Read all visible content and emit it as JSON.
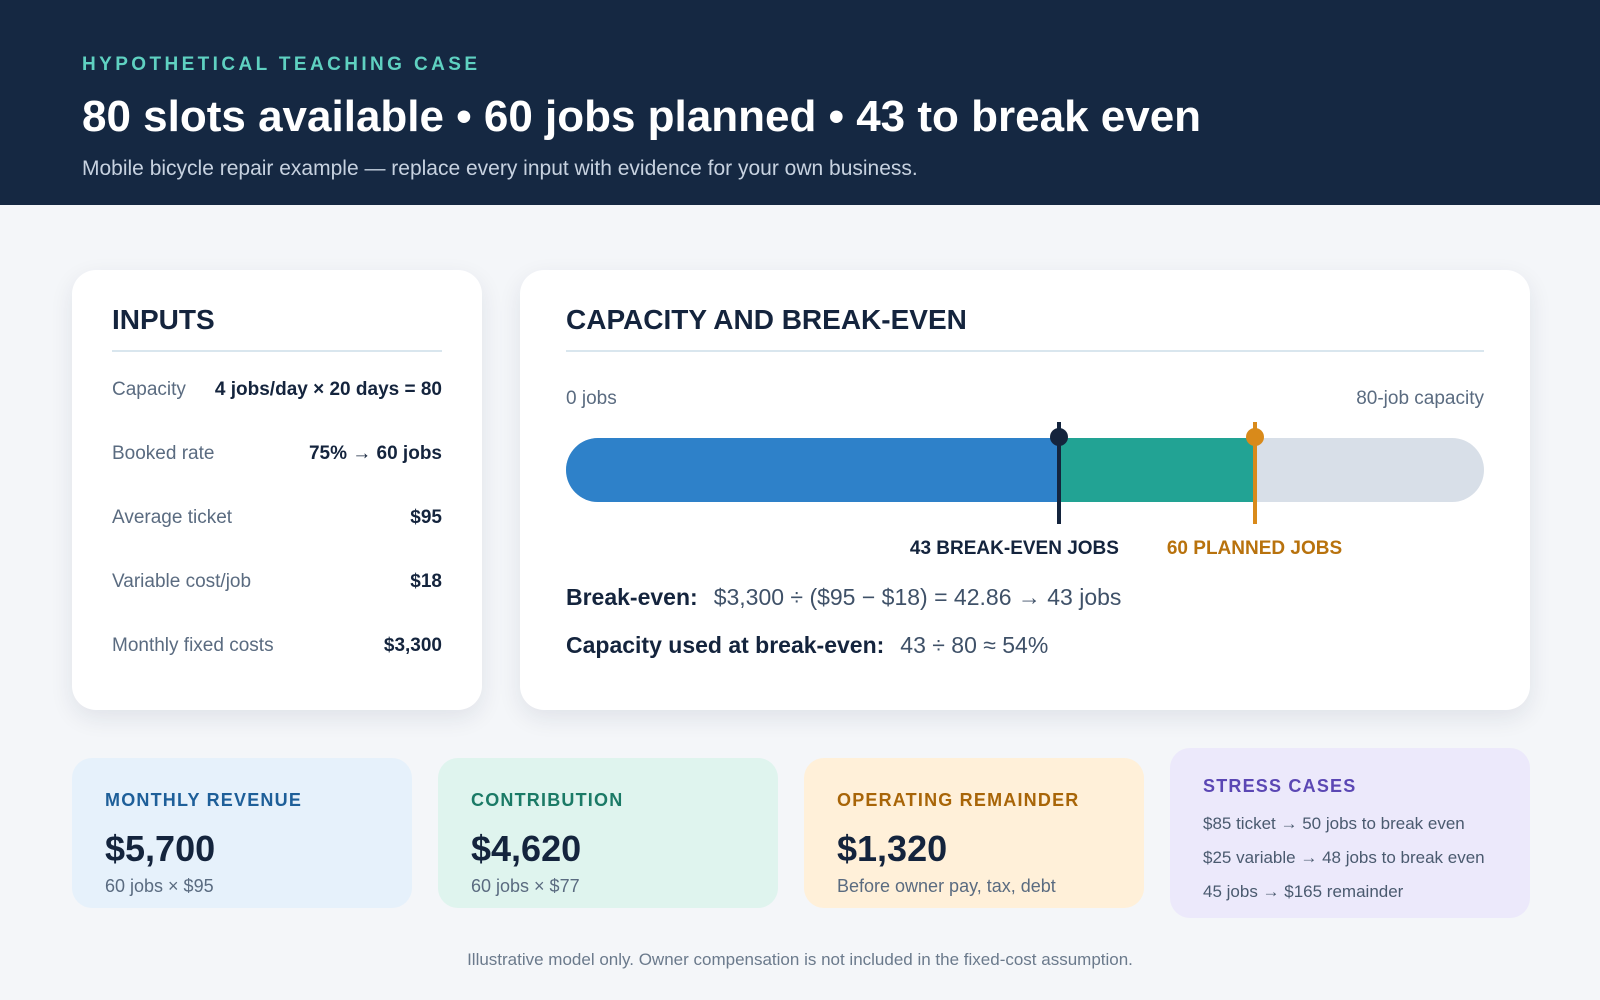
{
  "header": {
    "eyebrow": "HYPOTHETICAL TEACHING CASE",
    "headline": "80 slots available • 60 jobs planned • 43 to break even",
    "subline": "Mobile bicycle repair example — replace every input with evidence for your own business."
  },
  "inputs": {
    "title": "INPUTS",
    "rows": [
      {
        "label": "Capacity",
        "value": "4 jobs/day × 20 days = 80"
      },
      {
        "label": "Booked rate",
        "value": "75% → 60 jobs"
      },
      {
        "label": "Average ticket",
        "value": "$95"
      },
      {
        "label": "Variable cost/job",
        "value": "$18"
      },
      {
        "label": "Monthly fixed costs",
        "value": "$3,300"
      }
    ]
  },
  "capacity": {
    "title": "CAPACITY AND BREAK-EVEN",
    "axis_left": "0 jobs",
    "axis_right": "80-job capacity",
    "total_capacity": 80,
    "break_even_jobs": 43,
    "planned_jobs": 60,
    "break_even_label": "43 BREAK-EVEN JOBS",
    "planned_label": "60 PLANNED JOBS",
    "formula_1_key": "Break-even:",
    "formula_1_value": "$3,300 ÷ ($95 − $18) = 42.86 → 43 jobs",
    "formula_2_key": "Capacity used at break-even:",
    "formula_2_value": "43 ÷ 80 ≈ 54%",
    "colors": {
      "break_even_segment": "#2e81c9",
      "planned_segment": "#22a394",
      "remaining_track": "#d8dfe8",
      "planned_marker": "#d98a1a",
      "break_even_marker": "#14243d"
    }
  },
  "tiles": {
    "revenue": {
      "label": "MONTHLY REVENUE",
      "value": "$5,700",
      "note": "60 jobs × $95"
    },
    "contribution": {
      "label": "CONTRIBUTION",
      "value": "$4,620",
      "note": "60 jobs × $77"
    },
    "operating": {
      "label": "OPERATING REMAINDER",
      "value": "$1,320",
      "note": "Before owner pay, tax, debt"
    },
    "stress": {
      "label": "STRESS CASES",
      "items": [
        "$85 ticket → 50 jobs to break even",
        "$25 variable → 48 jobs to break even",
        "45 jobs → $165 remainder"
      ]
    }
  },
  "footer": "Illustrative model only. Owner compensation is not included in the fixed-cost assumption."
}
